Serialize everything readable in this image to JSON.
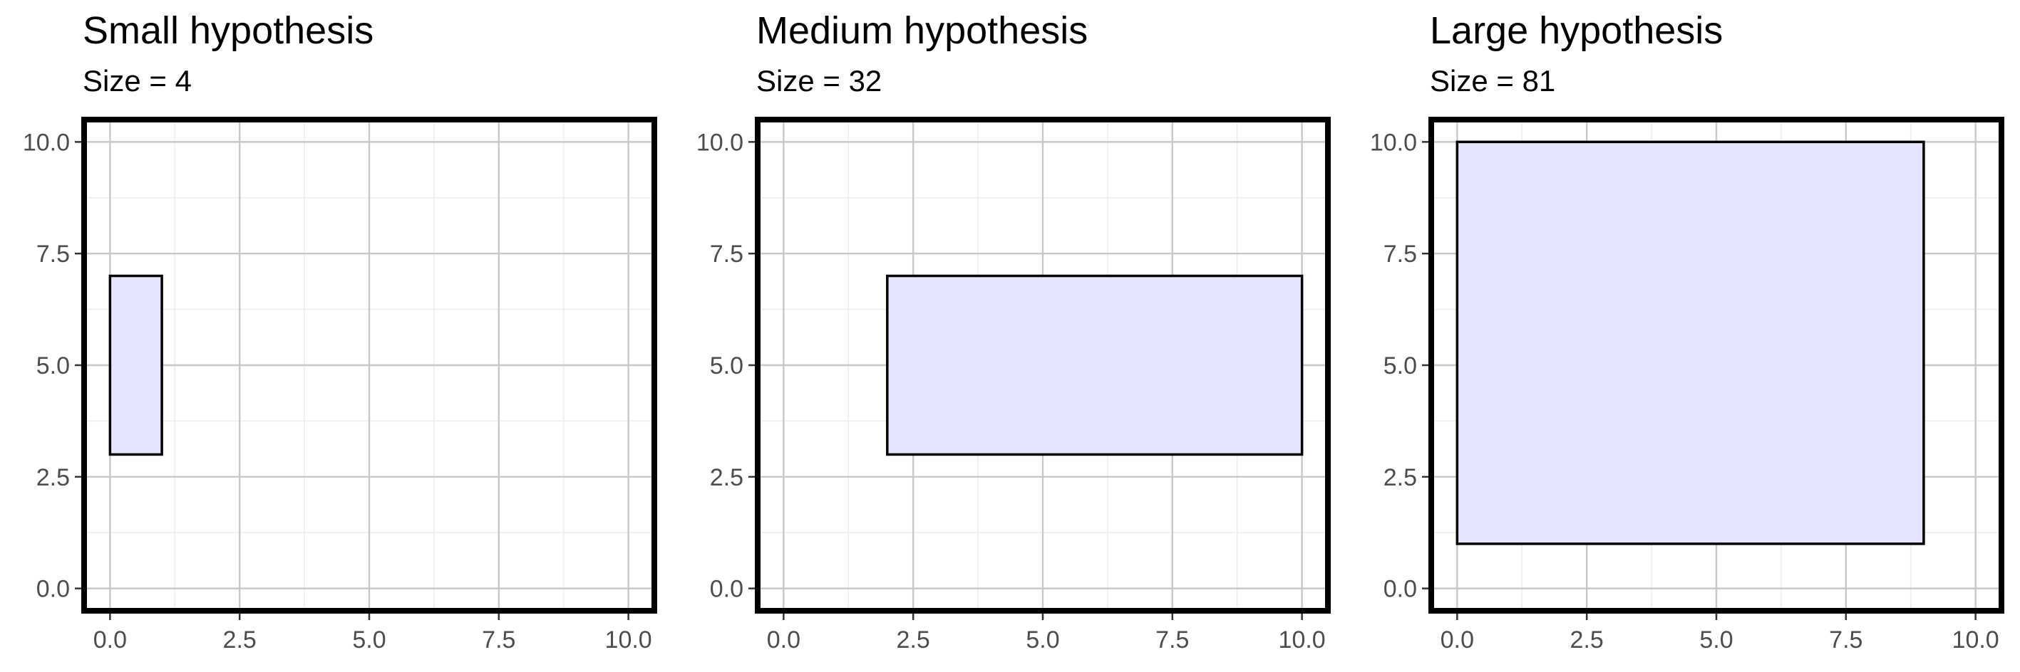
{
  "chart_data": [
    {
      "type": "rectangle",
      "title": "Small hypothesis",
      "subtitle": "Size = 4",
      "xlabel": "",
      "ylabel": "",
      "xlim": [
        -0.5,
        10.5
      ],
      "ylim": [
        -0.5,
        10.5
      ],
      "x_ticks": [
        "0.0",
        "2.5",
        "5.0",
        "7.5",
        "10.0"
      ],
      "y_ticks": [
        "0.0",
        "2.5",
        "5.0",
        "7.5",
        "10.0"
      ],
      "grid": true,
      "rectangle": {
        "xmin": 0,
        "xmax": 1,
        "ymin": 3,
        "ymax": 7
      }
    },
    {
      "type": "rectangle",
      "title": "Medium hypothesis",
      "subtitle": "Size = 32",
      "xlabel": "",
      "ylabel": "",
      "xlim": [
        -0.5,
        10.5
      ],
      "ylim": [
        -0.5,
        10.5
      ],
      "x_ticks": [
        "0.0",
        "2.5",
        "5.0",
        "7.5",
        "10.0"
      ],
      "y_ticks": [
        "0.0",
        "2.5",
        "5.0",
        "7.5",
        "10.0"
      ],
      "grid": true,
      "rectangle": {
        "xmin": 2,
        "xmax": 10,
        "ymin": 3,
        "ymax": 7
      }
    },
    {
      "type": "rectangle",
      "title": "Large hypothesis",
      "subtitle": "Size = 81",
      "xlabel": "",
      "ylabel": "",
      "xlim": [
        -0.5,
        10.5
      ],
      "ylim": [
        -0.5,
        10.5
      ],
      "x_ticks": [
        "0.0",
        "2.5",
        "5.0",
        "7.5",
        "10.0"
      ],
      "y_ticks": [
        "0.0",
        "2.5",
        "5.0",
        "7.5",
        "10.0"
      ],
      "grid": true,
      "rectangle": {
        "xmin": 0,
        "xmax": 9,
        "ymin": 1,
        "ymax": 10
      }
    }
  ],
  "colors": {
    "rect_fill": "#e5e5fd",
    "rect_stroke": "#000000",
    "grid_major": "#c8c8c8",
    "grid_minor": "#ececec",
    "panel_border": "#000000",
    "tick_text": "#4d4d4d"
  }
}
